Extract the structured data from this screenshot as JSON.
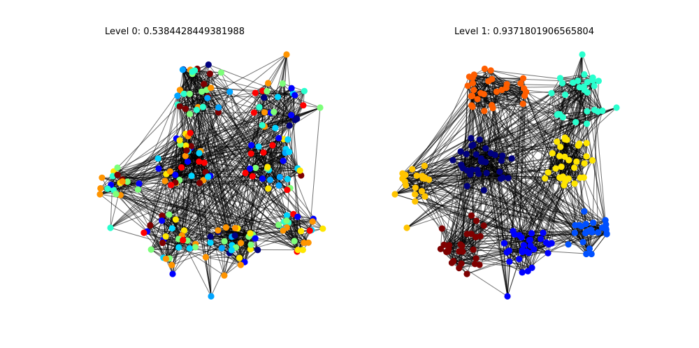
{
  "figure": {
    "panels": [
      {
        "title": "Level 0: 0.5384428449381988"
      },
      {
        "title": "Level 1: 0.9371801906565804"
      }
    ]
  },
  "chart_data": {
    "type": "network",
    "colormap": "jet",
    "communities": [
      {
        "name": "top",
        "level0_mix": [
          "#00007f",
          "#0000ff",
          "#00a4ff",
          "#7dff7a",
          "#ff9400",
          "#7f0000",
          "#29ffce"
        ],
        "level1_color": "#ff5e00"
      },
      {
        "name": "top-right",
        "level0_mix": [
          "#ff0000",
          "#0000ff",
          "#29ffce",
          "#7dff7a",
          "#00007f",
          "#00d4ff",
          "#ff9400"
        ],
        "level1_color": "#29ffce"
      },
      {
        "name": "center-left",
        "level0_mix": [
          "#0000ff",
          "#ff0000",
          "#ffe600",
          "#7f0000",
          "#00d4ff",
          "#7dff7a",
          "#ff9400"
        ],
        "level1_color": "#00007f"
      },
      {
        "name": "center-right",
        "level0_mix": [
          "#7f0000",
          "#0000ff",
          "#ffe600",
          "#00d4ff",
          "#7dff7a",
          "#ff0000",
          "#00a4ff"
        ],
        "level1_color": "#ffe600"
      },
      {
        "name": "left",
        "level0_mix": [
          "#0000ff",
          "#7dff7a",
          "#ffe600",
          "#ff9400",
          "#29ffce",
          "#7f0000"
        ],
        "level1_color": "#ffc400"
      },
      {
        "name": "bottom-left",
        "level0_mix": [
          "#ffe600",
          "#0000ff",
          "#ff9400",
          "#7dff7a",
          "#7f0000",
          "#00d4ff",
          "#ff0000"
        ],
        "level1_color": "#7f0000"
      },
      {
        "name": "bottom-center",
        "level0_mix": [
          "#00007f",
          "#0000ff",
          "#00d4ff",
          "#ff9400",
          "#7dff7a",
          "#ffe600",
          "#00a4ff"
        ],
        "level1_color": "#0000ff"
      },
      {
        "name": "bottom-right",
        "level0_mix": [
          "#ff0000",
          "#7dff7a",
          "#0000ff",
          "#00d4ff",
          "#ff9400",
          "#ffe600",
          "#29ffce"
        ],
        "level1_color": "#0050ff"
      }
    ]
  }
}
